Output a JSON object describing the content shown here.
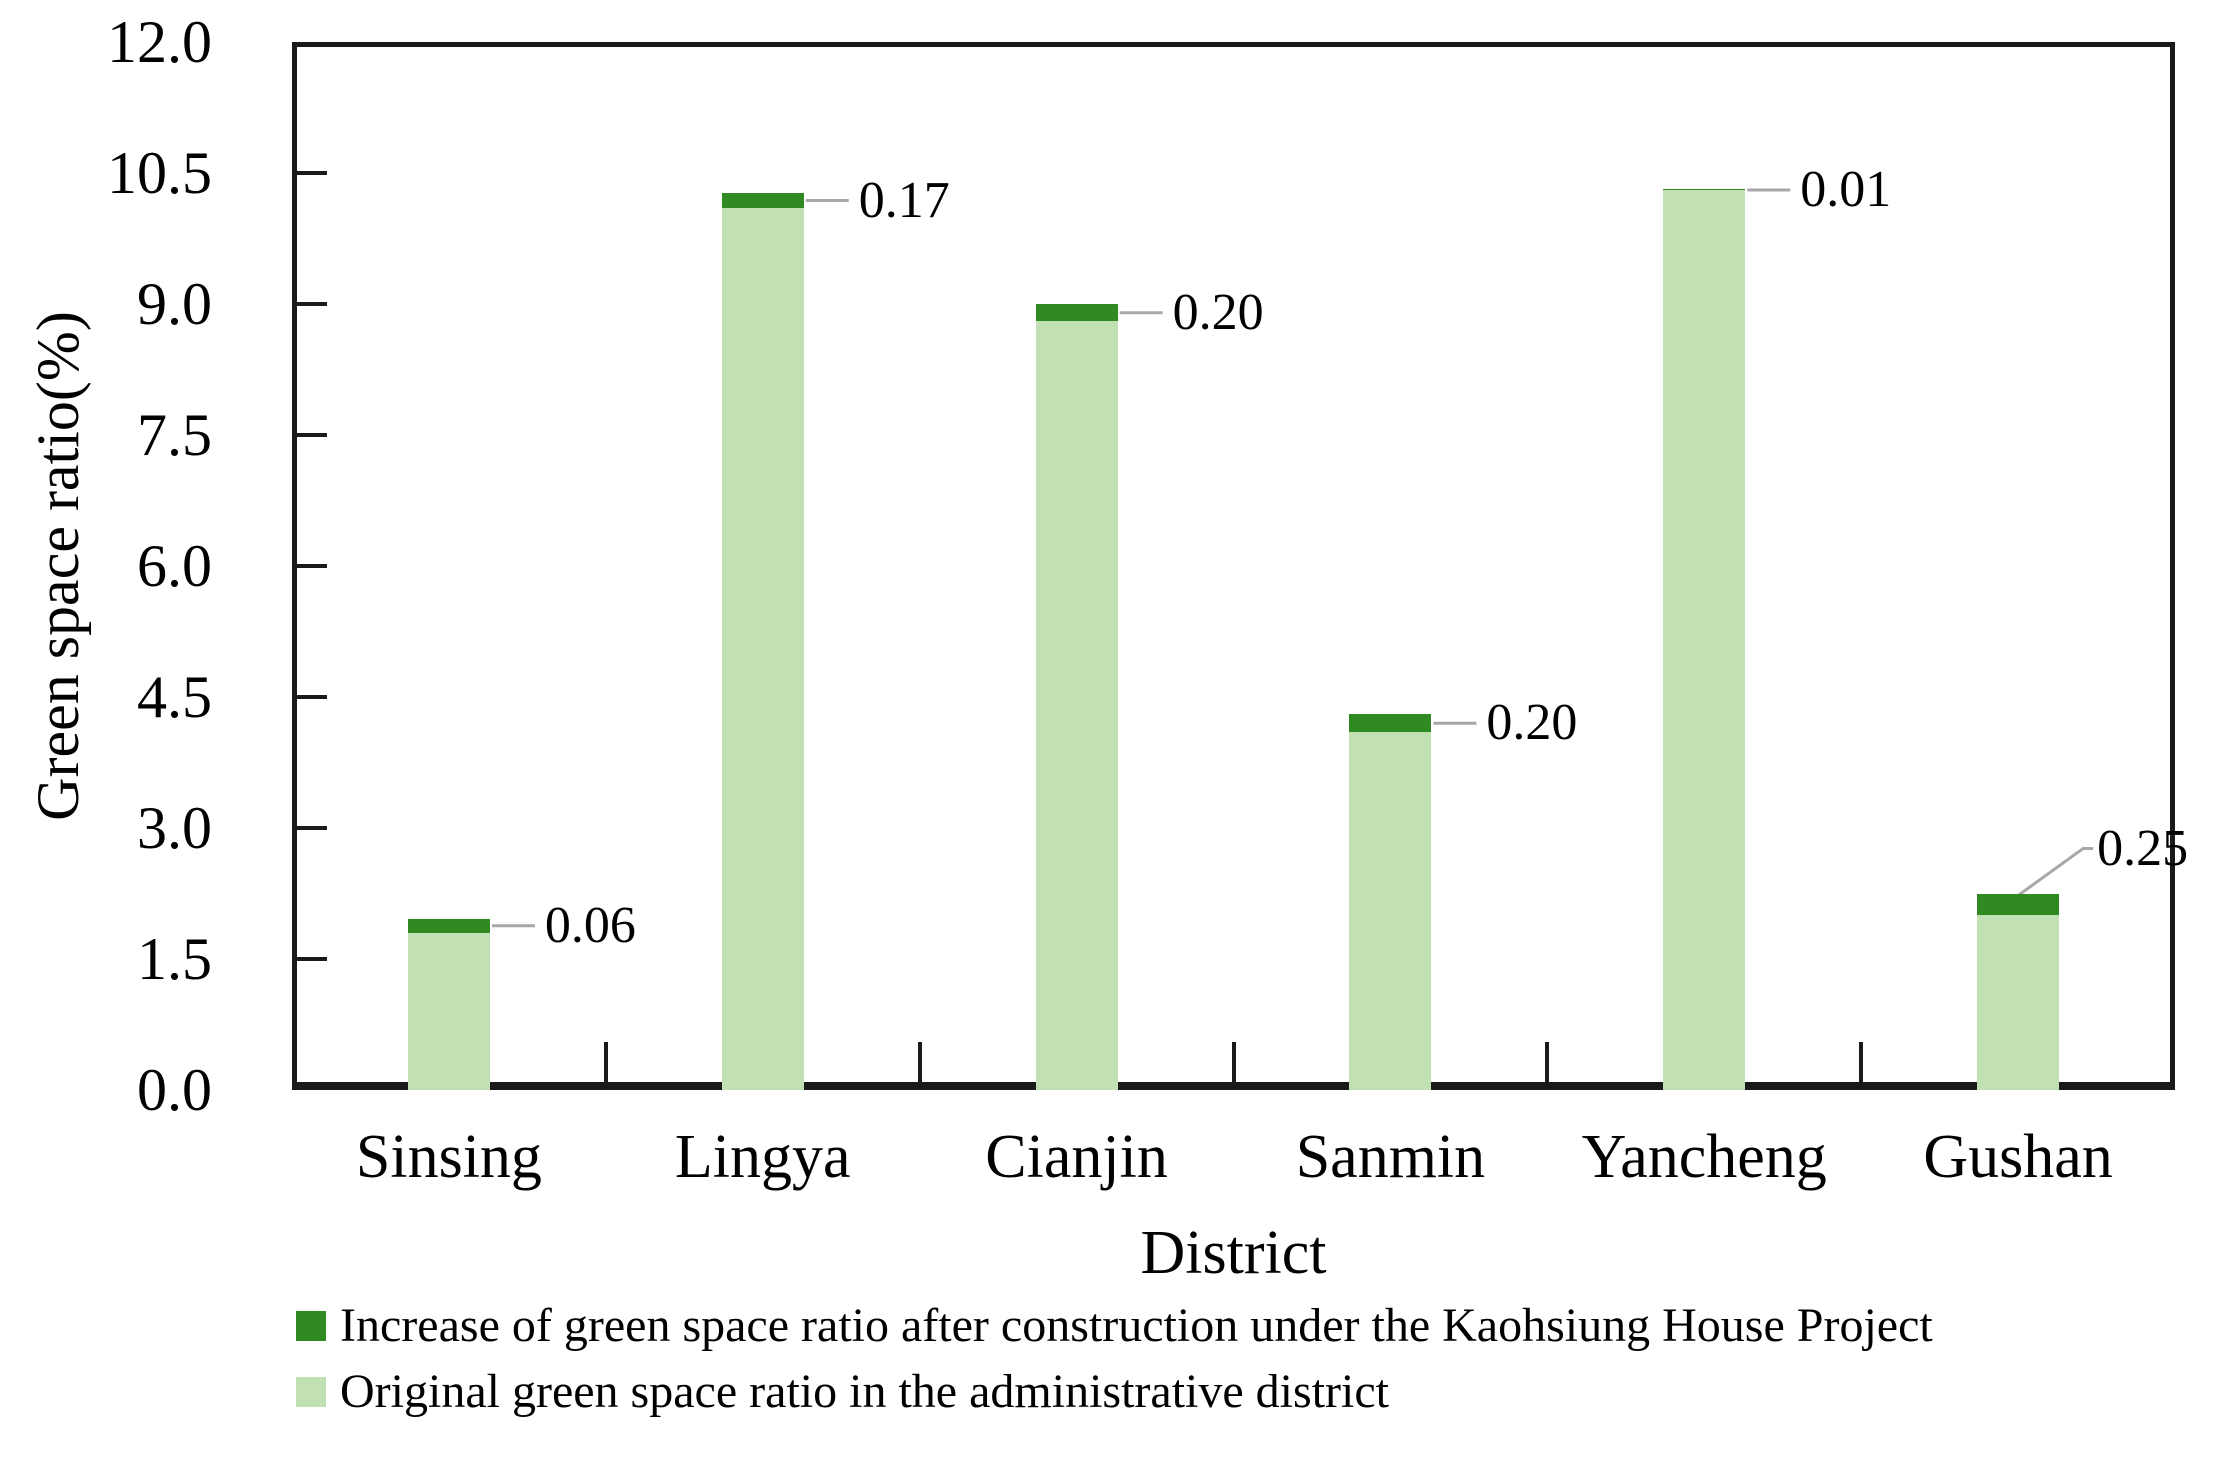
{
  "chart_data": {
    "type": "bar",
    "stacked": true,
    "title": "",
    "xlabel": "District",
    "ylabel": "Green space ratio(%)",
    "ylim": [
      0,
      12
    ],
    "yticks": [
      0,
      1.5,
      3,
      4.5,
      6,
      7.5,
      9,
      10.5,
      12
    ],
    "ytick_labels": [
      "0.0",
      "1.5",
      "3.0",
      "4.5",
      "6.0",
      "7.5",
      "9.0",
      "10.5",
      "12.0"
    ],
    "categories": [
      "Sinsing",
      "Lingya",
      "Cianjin",
      "Sanmin",
      "Yancheng",
      "Gushan"
    ],
    "series": [
      {
        "name": "Increase of green space ratio after construction under the Kaohsiung House Project",
        "color": "#2f8a21",
        "values": [
          0.06,
          0.17,
          0.2,
          0.2,
          0.01,
          0.25
        ],
        "data_labels": [
          "0.06",
          "0.17",
          "0.20",
          "0.20",
          "0.01",
          "0.25"
        ],
        "label_placement": [
          "right",
          "right",
          "right",
          "right",
          "right",
          "above"
        ]
      },
      {
        "name": "Original green space ratio in the administrative district",
        "color": "#c1e0b4",
        "values": [
          1.8,
          10.1,
          8.8,
          4.1,
          10.3,
          2.0
        ]
      }
    ],
    "legend_position": "bottom-left",
    "grid": false,
    "leader_line_color": "#a8a8a8",
    "axis_color": "#1a1a1a",
    "text_color": "#000000"
  }
}
